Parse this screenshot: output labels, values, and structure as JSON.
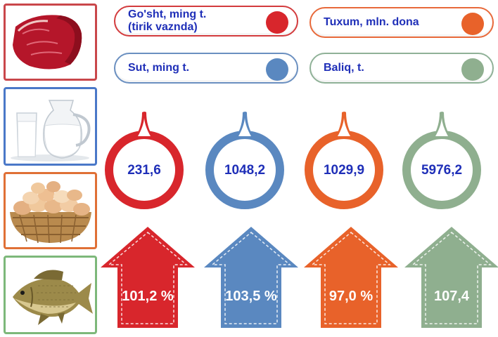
{
  "colors": {
    "meat": "#d8262c",
    "milk": "#5a88c0",
    "egg": "#e8622a",
    "fish": "#8faf8f",
    "text": "#1f2fb8"
  },
  "legend": {
    "meat_line1": "Go'sht, ming t.",
    "meat_line2": "(tirik vaznda)",
    "egg": "Tuxum, mln. dona",
    "milk": "Sut, ming t.",
    "fish": "Baliq, t."
  },
  "values": {
    "meat": "231,6",
    "milk": "1048,2",
    "egg": "1029,9",
    "fish": "5976,2"
  },
  "growth": {
    "meat": "101,2 %",
    "milk": "103,5 %",
    "egg": "97,0 %",
    "fish": "107,4"
  },
  "images": [
    "meat-image",
    "milk-image",
    "eggs-image",
    "fish-image"
  ]
}
